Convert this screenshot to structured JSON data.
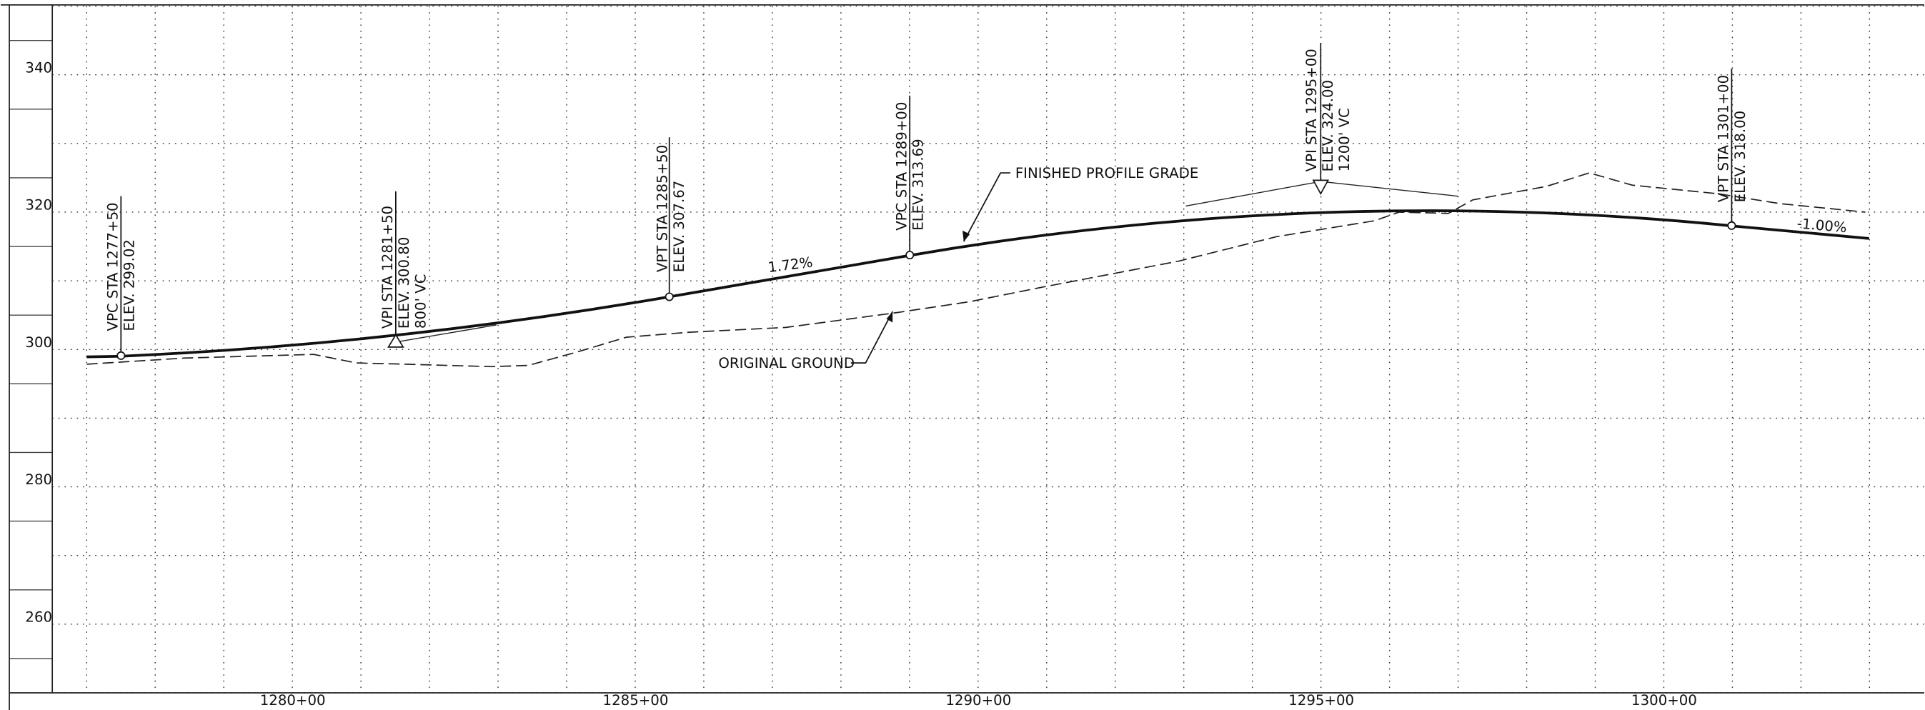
{
  "y_axis_labels": [
    "340",
    "320",
    "300",
    "280",
    "260"
  ],
  "x_axis_labels": [
    "1280+00",
    "1285+00",
    "1290+00",
    "1295+00",
    "1300+00"
  ],
  "annotations": [
    {
      "lines": [
        "VPC STA 1277+50",
        "ELEV. 299.02"
      ]
    },
    {
      "lines": [
        "VPI STA 1281+50",
        "ELEV. 300.80",
        "800' VC"
      ]
    },
    {
      "lines": [
        "VPT STA 1285+50",
        "ELEV. 307.67"
      ]
    },
    {
      "lines": [
        "VPC STA 1289+00",
        "ELEV. 313.69"
      ]
    },
    {
      "lines": [
        "VPI STA 1295+00",
        "ELEV. 324.00",
        "1200' VC"
      ]
    },
    {
      "lines": [
        "VPT STA 1301+00",
        "ELEV. 318.00"
      ]
    }
  ],
  "grade_labels": [
    "1.72%",
    "-1.00%"
  ],
  "callouts": [
    "FINISHED PROFILE GRADE",
    "ORIGINAL GROUND"
  ]
}
